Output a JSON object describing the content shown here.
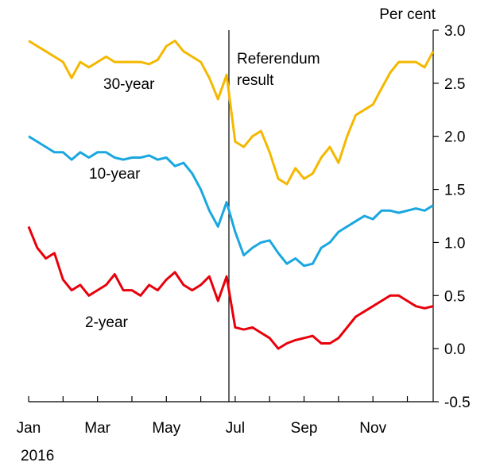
{
  "chart_data": {
    "type": "line",
    "y_label": "Per cent",
    "x_label": "2016",
    "annotation": [
      "Referendum",
      "result"
    ],
    "categories": [
      "Jan",
      null,
      null,
      null,
      null,
      null,
      null,
      null,
      "Mar",
      null,
      null,
      null,
      null,
      null,
      null,
      null,
      "May",
      null,
      null,
      null,
      null,
      null,
      null,
      null,
      "Jul",
      null,
      null,
      null,
      null,
      null,
      null,
      null,
      "Sep",
      null,
      null,
      null,
      null,
      null,
      null,
      null,
      "Nov",
      null,
      null,
      null,
      null,
      null,
      null,
      null
    ],
    "ylim": [
      -0.5,
      3.0
    ],
    "yticks": [
      -0.5,
      {
        "value": 0,
        "label": "0.0"
      },
      0.5,
      {
        "value": 1,
        "label": "1.0"
      },
      1.5,
      {
        "value": 2,
        "label": "2.0"
      },
      2.5,
      {
        "value": 3,
        "label": "3.0"
      }
    ],
    "series": [
      {
        "name": "30-year",
        "color": "#f5b800",
        "values": [
          2.9,
          2.85,
          2.8,
          2.75,
          2.7,
          2.55,
          2.7,
          2.65,
          2.7,
          2.75,
          2.7,
          2.7,
          2.7,
          2.7,
          2.68,
          2.72,
          2.85,
          2.9,
          2.8,
          2.75,
          2.7,
          2.55,
          2.35,
          2.58,
          1.95,
          1.9,
          2.0,
          2.05,
          1.85,
          1.6,
          1.55,
          1.7,
          1.6,
          1.65,
          1.8,
          1.9,
          1.75,
          2.0,
          2.2,
          2.25,
          2.3,
          2.45,
          2.6,
          2.7,
          2.7,
          2.7,
          2.65,
          2.8
        ]
      },
      {
        "name": "10-year",
        "color": "#1aa7e0",
        "values": [
          2.0,
          1.95,
          1.9,
          1.85,
          1.85,
          1.78,
          1.85,
          1.8,
          1.85,
          1.85,
          1.8,
          1.78,
          1.8,
          1.8,
          1.82,
          1.78,
          1.8,
          1.72,
          1.75,
          1.65,
          1.5,
          1.3,
          1.15,
          1.38,
          1.1,
          0.88,
          0.95,
          1.0,
          1.02,
          0.9,
          0.8,
          0.85,
          0.78,
          0.8,
          0.95,
          1.0,
          1.1,
          1.15,
          1.2,
          1.25,
          1.22,
          1.3,
          1.3,
          1.28,
          1.3,
          1.32,
          1.3,
          1.35
        ]
      },
      {
        "name": "2-year",
        "color": "#e8000b",
        "values": [
          1.15,
          0.95,
          0.85,
          0.9,
          0.65,
          0.55,
          0.6,
          0.5,
          0.55,
          0.6,
          0.7,
          0.55,
          0.55,
          0.5,
          0.6,
          0.55,
          0.65,
          0.72,
          0.6,
          0.55,
          0.6,
          0.68,
          0.45,
          0.68,
          0.2,
          0.18,
          0.2,
          0.15,
          0.1,
          0.0,
          0.05,
          0.08,
          0.1,
          0.12,
          0.05,
          0.05,
          0.1,
          0.2,
          0.3,
          0.35,
          0.4,
          0.45,
          0.5,
          0.5,
          0.45,
          0.4,
          0.38,
          0.4
        ]
      }
    ]
  }
}
